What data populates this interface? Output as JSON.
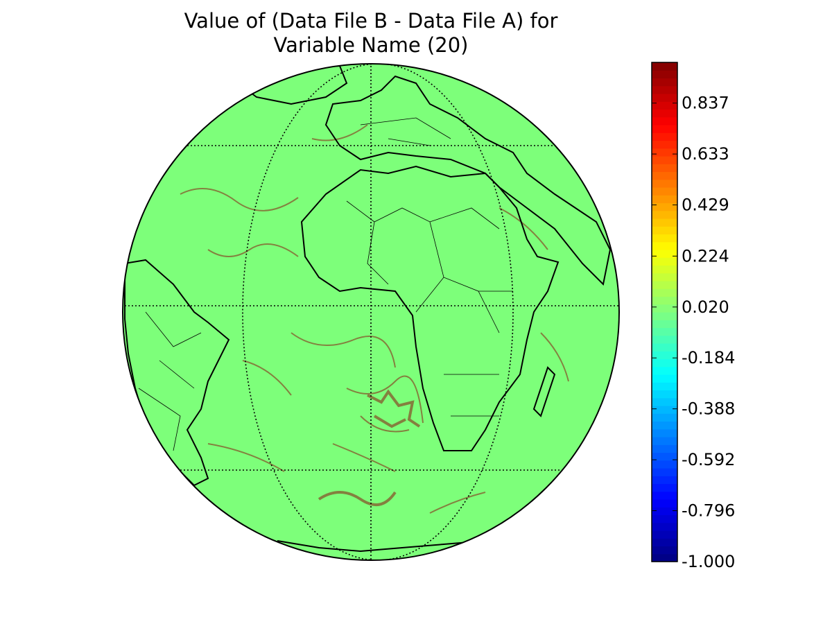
{
  "chart_data": {
    "type": "map",
    "title_lines": [
      "Value of (Data File B - Data File A) for",
      "Variable Name (20)"
    ],
    "colorbar": {
      "colormap": "jet",
      "clim": [
        -1,
        1
      ],
      "ticks": [
        {
          "value": -1.0,
          "label": "-1.000"
        },
        {
          "value": -0.796,
          "label": "-0.796"
        },
        {
          "value": -0.592,
          "label": "-0.592"
        },
        {
          "value": -0.388,
          "label": "-0.388"
        },
        {
          "value": -0.184,
          "label": "-0.184"
        },
        {
          "value": 0.02,
          "label": "0.020"
        },
        {
          "value": 0.224,
          "label": "0.224"
        },
        {
          "value": 0.429,
          "label": "0.429"
        },
        {
          "value": 0.633,
          "label": "0.633"
        },
        {
          "value": 0.837,
          "label": "0.837"
        }
      ]
    }
  }
}
